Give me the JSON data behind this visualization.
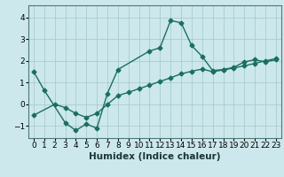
{
  "xlabel": "Humidex (Indice chaleur)",
  "bg_color": "#cce8ec",
  "grid_color": "#aacccc",
  "line_color": "#1a6e62",
  "xlim": [
    -0.5,
    23.5
  ],
  "ylim": [
    -1.55,
    4.55
  ],
  "xticks": [
    0,
    1,
    2,
    3,
    4,
    5,
    6,
    7,
    8,
    9,
    10,
    11,
    12,
    13,
    14,
    15,
    16,
    17,
    18,
    19,
    20,
    21,
    22,
    23
  ],
  "yticks": [
    -1,
    0,
    1,
    2,
    3,
    4
  ],
  "curve1_points": [
    [
      0,
      1.5
    ],
    [
      1,
      0.65
    ],
    [
      3,
      -0.85
    ],
    [
      4,
      -1.2
    ],
    [
      5,
      -0.9
    ],
    [
      6,
      -1.1
    ],
    [
      7,
      0.5
    ],
    [
      8,
      1.6
    ],
    [
      11,
      2.45
    ],
    [
      12,
      2.6
    ],
    [
      13,
      3.85
    ],
    [
      14,
      3.75
    ],
    [
      15,
      2.7
    ],
    [
      16,
      2.2
    ],
    [
      17,
      1.55
    ],
    [
      18,
      1.6
    ],
    [
      19,
      1.7
    ],
    [
      20,
      1.95
    ],
    [
      21,
      2.05
    ],
    [
      22,
      1.95
    ],
    [
      23,
      2.05
    ]
  ],
  "curve2_points": [
    [
      0,
      -0.5
    ],
    [
      2,
      0.0
    ],
    [
      3,
      -0.15
    ],
    [
      4,
      -0.42
    ],
    [
      5,
      -0.6
    ],
    [
      6,
      -0.42
    ],
    [
      7,
      0.0
    ],
    [
      8,
      0.4
    ],
    [
      9,
      0.55
    ],
    [
      10,
      0.72
    ],
    [
      11,
      0.88
    ],
    [
      12,
      1.05
    ],
    [
      13,
      1.22
    ],
    [
      14,
      1.4
    ],
    [
      15,
      1.52
    ],
    [
      16,
      1.62
    ],
    [
      17,
      1.5
    ],
    [
      18,
      1.58
    ],
    [
      19,
      1.67
    ],
    [
      20,
      1.77
    ],
    [
      21,
      1.88
    ],
    [
      22,
      2.0
    ],
    [
      23,
      2.1
    ]
  ],
  "tick_fontsize": 6.5,
  "xlabel_fontsize": 7.5,
  "marker": "D",
  "markersize": 2.5,
  "linewidth": 1.0
}
